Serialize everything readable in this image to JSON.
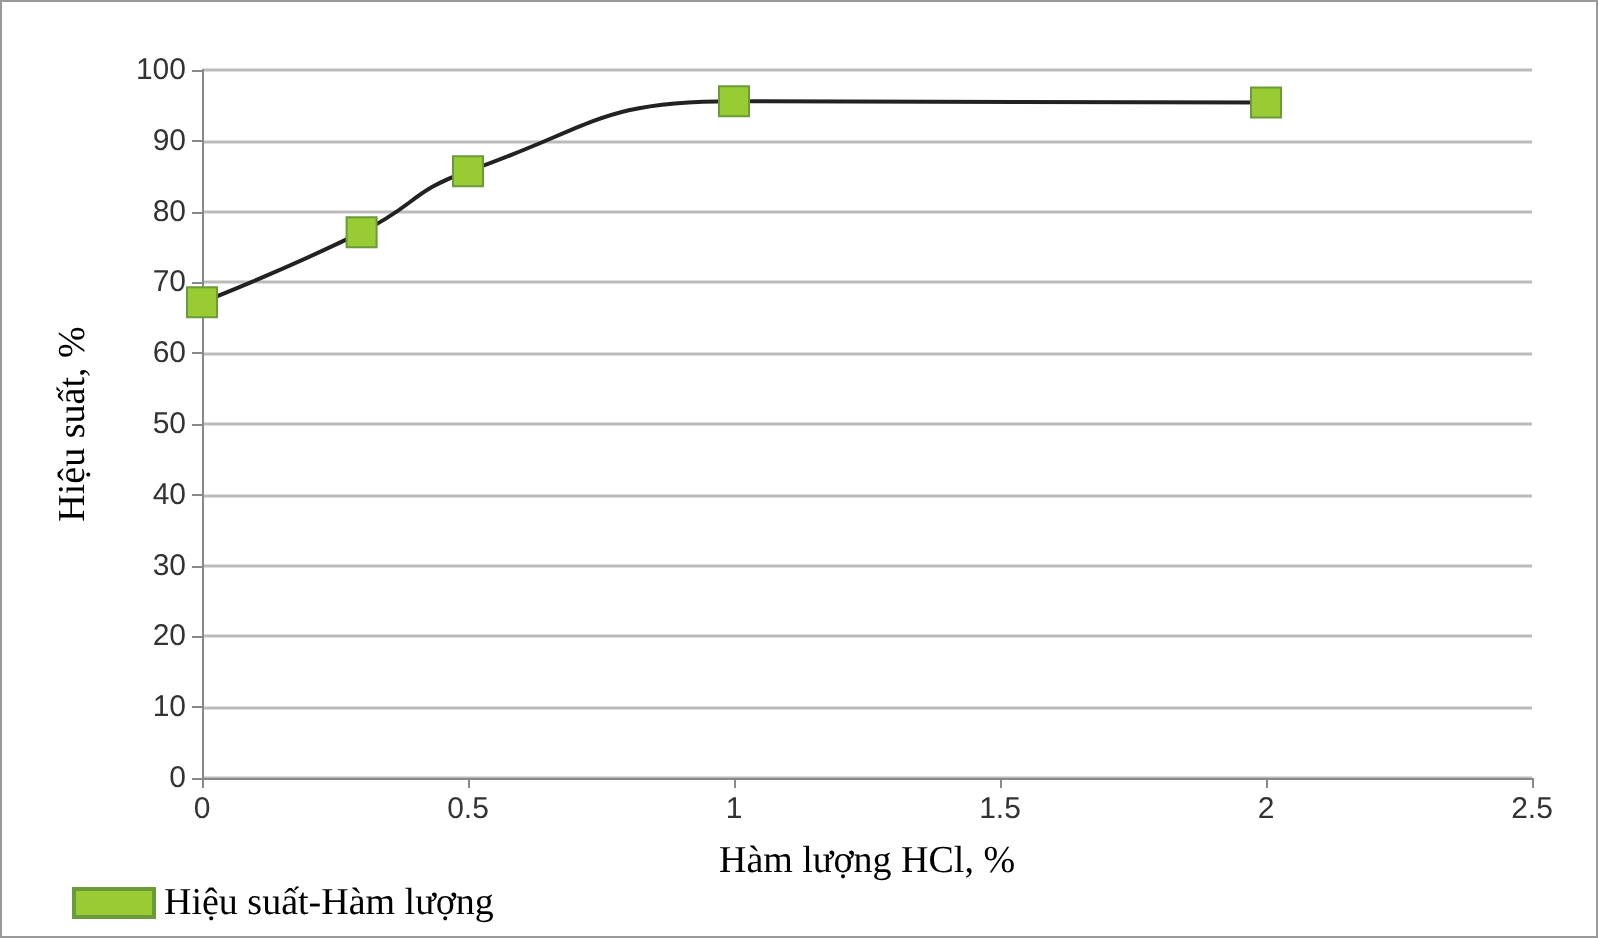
{
  "chart_data": {
    "type": "line",
    "xlabel": "Hàm lượng HCl, %",
    "ylabel": "Hiệu suất, %",
    "x": [
      0,
      0.3,
      0.5,
      1,
      2
    ],
    "series": [
      {
        "name": "Hiệu suất-Hàm lượng",
        "color": "#99cc33",
        "values": [
          67.2,
          77.1,
          85.7,
          95.6,
          95.4
        ]
      }
    ],
    "xlim": [
      0,
      2.5
    ],
    "xticks": [
      0,
      0.5,
      1,
      1.5,
      2,
      2.5
    ],
    "ylim": [
      0,
      100
    ],
    "yticks": [
      0,
      10,
      20,
      30,
      40,
      50,
      60,
      70,
      80,
      90,
      100
    ],
    "grid": "y",
    "legend": "bottom left",
    "marker": "square",
    "line_style": "solid"
  }
}
